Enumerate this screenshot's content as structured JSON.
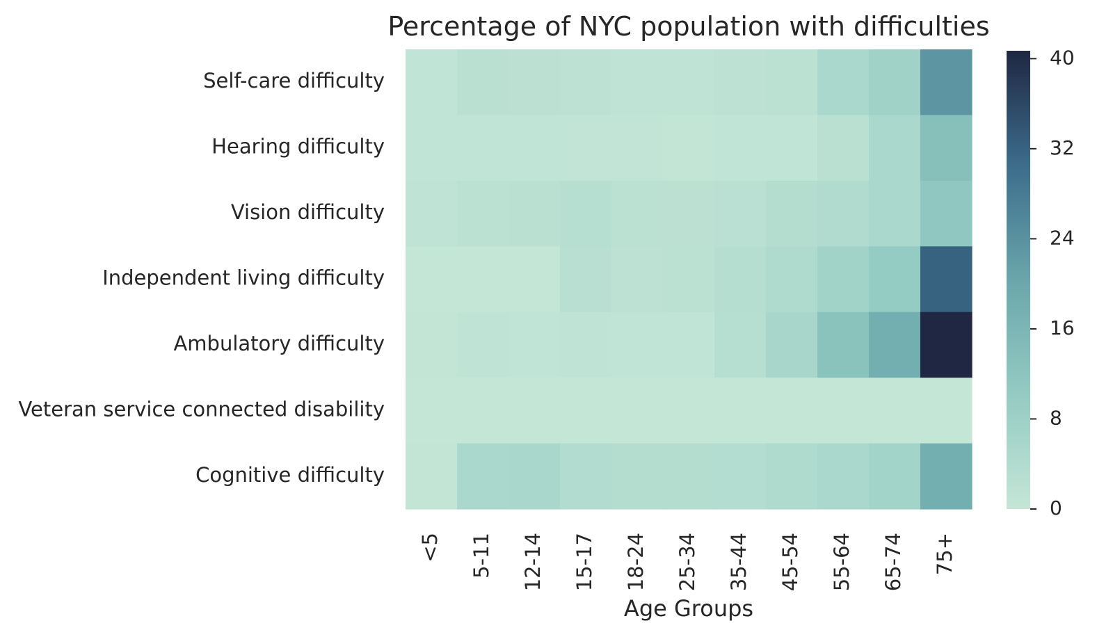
{
  "chart_data": {
    "type": "heatmap",
    "title": "Percentage of NYC population with difficulties",
    "xlabel": "Age Groups",
    "ylabel": "",
    "x_categories": [
      "<5",
      "5-11",
      "12-14",
      "15-17",
      "18-24",
      "25-34",
      "35-44",
      "45-54",
      "55-64",
      "65-74",
      "75+"
    ],
    "y_categories": [
      "Self-care difficulty",
      "Hearing difficulty",
      "Vision difficulty",
      "Independent living difficulty",
      "Ambulatory difficulty",
      "Veteran service connected disability",
      "Cognitive difficulty"
    ],
    "values": [
      [
        0.9,
        2.2,
        1.7,
        1.4,
        1.1,
        1.1,
        1.4,
        2.0,
        5.4,
        7.6,
        23.3
      ],
      [
        0.8,
        0.8,
        0.8,
        0.6,
        0.6,
        0.4,
        0.9,
        0.8,
        2.2,
        5.3,
        13.4
      ],
      [
        1.0,
        1.9,
        2.2,
        3.0,
        2.0,
        1.7,
        2.1,
        3.3,
        4.3,
        5.2,
        11.2
      ],
      [
        0.0,
        0.0,
        0.0,
        2.5,
        1.5,
        2.0,
        3.2,
        4.4,
        7.3,
        10.2,
        32.0
      ],
      [
        0.3,
        1.0,
        0.8,
        1.1,
        0.9,
        0.8,
        2.7,
        6.0,
        12.7,
        18.2,
        40.7
      ],
      [
        0.0,
        0.0,
        0.0,
        0.0,
        0.0,
        0.0,
        0.0,
        0.0,
        0.0,
        0.0,
        0.0
      ],
      [
        0.5,
        5.3,
        5.8,
        3.8,
        3.4,
        3.4,
        3.5,
        4.5,
        5.4,
        6.9,
        18.2
      ]
    ],
    "colorbar": {
      "min": 0,
      "max": 40.7,
      "ticks": [
        0,
        8,
        16,
        24,
        32,
        40
      ],
      "colors": {
        "low": "#c4e6d7",
        "mid_low": "#94cbc2",
        "mid": "#6aa6ab",
        "mid_high": "#3c6d8b",
        "high": "#1f2742"
      }
    },
    "grid": false,
    "legend": "colorbar-right"
  }
}
